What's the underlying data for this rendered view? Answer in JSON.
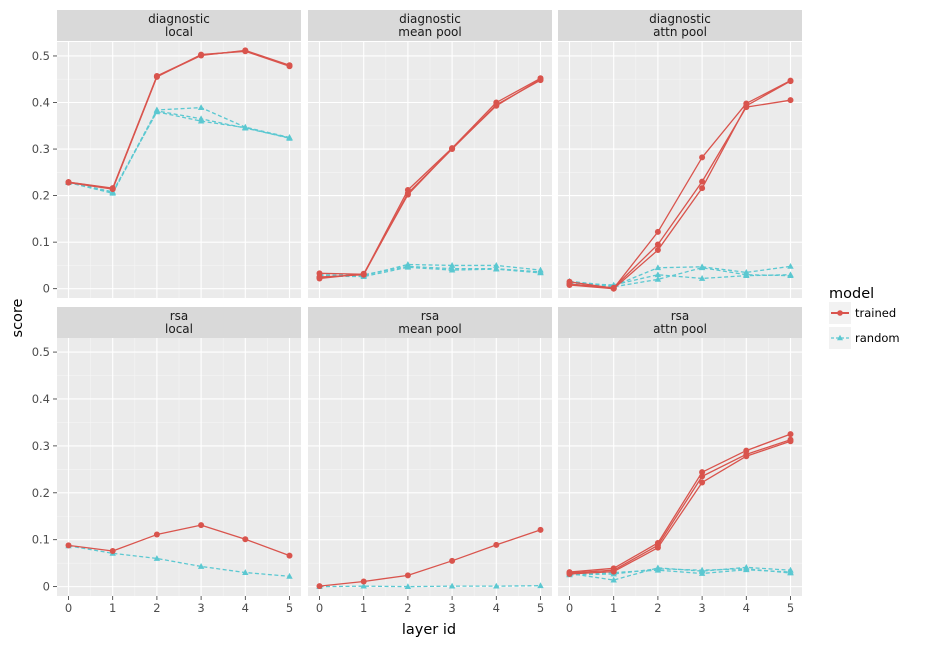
{
  "chart_data": {
    "type": "line",
    "xlabel": "layer id",
    "ylabel": "score",
    "x": [
      0,
      1,
      2,
      3,
      4,
      5
    ],
    "xticks": [
      "0",
      "1",
      "2",
      "3",
      "4",
      "5"
    ],
    "ylim": [
      -0.02,
      0.53
    ],
    "yticks": [
      {
        "value": 0,
        "label": "0"
      },
      {
        "value": 0.1,
        "label": "0.1"
      },
      {
        "value": 0.2,
        "label": "0.2"
      },
      {
        "value": 0.3,
        "label": "0.3"
      },
      {
        "value": 0.4,
        "label": "0.4"
      },
      {
        "value": 0.5,
        "label": "0.5"
      }
    ],
    "legend": {
      "title": "model",
      "position": "right",
      "entries": [
        {
          "key": "trained",
          "label": "trained",
          "color": "#d9544d",
          "dash": "solid",
          "marker": "circle"
        },
        {
          "key": "random",
          "label": "random",
          "color": "#5bc8d1",
          "dash": "dashed",
          "marker": "triangle"
        }
      ]
    },
    "panels": [
      {
        "id": "diagnostic-local",
        "strip": [
          "diagnostic",
          "local"
        ],
        "series": [
          {
            "model": "trained",
            "values": [
              0.229,
              0.216,
              0.457,
              0.502,
              0.511,
              0.479
            ]
          },
          {
            "model": "trained",
            "values": [
              0.228,
              0.214,
              0.455,
              0.503,
              0.51,
              0.478
            ]
          },
          {
            "model": "trained",
            "values": [
              0.229,
              0.215,
              0.456,
              0.501,
              0.512,
              0.48
            ]
          },
          {
            "model": "random",
            "values": [
              0.228,
              0.207,
              0.384,
              0.389,
              0.347,
              0.325
            ]
          },
          {
            "model": "random",
            "values": [
              0.228,
              0.205,
              0.382,
              0.365,
              0.345,
              0.324
            ]
          },
          {
            "model": "random",
            "values": [
              0.229,
              0.208,
              0.38,
              0.36,
              0.346,
              0.323
            ]
          }
        ]
      },
      {
        "id": "diagnostic-mean-pool",
        "strip": [
          "diagnostic",
          "mean pool"
        ],
        "series": [
          {
            "model": "trained",
            "values": [
              0.033,
              0.031,
              0.212,
              0.302,
              0.4,
              0.452
            ]
          },
          {
            "model": "trained",
            "values": [
              0.025,
              0.03,
              0.205,
              0.3,
              0.395,
              0.448
            ]
          },
          {
            "model": "trained",
            "values": [
              0.022,
              0.032,
              0.202,
              0.301,
              0.393,
              0.45
            ]
          },
          {
            "model": "random",
            "values": [
              0.03,
              0.028,
              0.052,
              0.05,
              0.05,
              0.04
            ]
          },
          {
            "model": "random",
            "values": [
              0.028,
              0.03,
              0.048,
              0.043,
              0.043,
              0.036
            ]
          },
          {
            "model": "random",
            "values": [
              0.027,
              0.026,
              0.046,
              0.04,
              0.042,
              0.034
            ]
          }
        ]
      },
      {
        "id": "diagnostic-attn-pool",
        "strip": [
          "diagnostic",
          "attn pool"
        ],
        "series": [
          {
            "model": "trained",
            "values": [
              0.015,
              0.001,
              0.122,
              0.282,
              0.398,
              0.447
            ]
          },
          {
            "model": "trained",
            "values": [
              0.01,
              0.002,
              0.095,
              0.23,
              0.39,
              0.405
            ]
          },
          {
            "model": "trained",
            "values": [
              0.008,
              0.0,
              0.083,
              0.216,
              0.393,
              0.446
            ]
          },
          {
            "model": "random",
            "values": [
              0.016,
              0.006,
              0.045,
              0.047,
              0.035,
              0.048
            ]
          },
          {
            "model": "random",
            "values": [
              0.012,
              0.008,
              0.03,
              0.022,
              0.028,
              0.03
            ]
          },
          {
            "model": "random",
            "values": [
              0.014,
              0.004,
              0.02,
              0.045,
              0.03,
              0.028
            ]
          }
        ]
      },
      {
        "id": "rsa-local",
        "strip": [
          "rsa",
          "local"
        ],
        "series": [
          {
            "model": "trained",
            "values": [
              0.088,
              0.076,
              0.111,
              0.131,
              0.101,
              0.066
            ]
          },
          {
            "model": "random",
            "values": [
              0.087,
              0.071,
              0.06,
              0.043,
              0.03,
              0.022
            ]
          }
        ]
      },
      {
        "id": "rsa-mean-pool",
        "strip": [
          "rsa",
          "mean pool"
        ],
        "series": [
          {
            "model": "trained",
            "values": [
              0.001,
              0.011,
              0.024,
              0.055,
              0.089,
              0.121
            ]
          },
          {
            "model": "random",
            "values": [
              0.0,
              0.001,
              0.0,
              0.001,
              0.001,
              0.002
            ]
          }
        ]
      },
      {
        "id": "rsa-attn-pool",
        "strip": [
          "rsa",
          "attn pool"
        ],
        "series": [
          {
            "model": "trained",
            "values": [
              0.031,
              0.039,
              0.093,
              0.244,
              0.29,
              0.325
            ]
          },
          {
            "model": "trained",
            "values": [
              0.029,
              0.035,
              0.088,
              0.235,
              0.282,
              0.313
            ]
          },
          {
            "model": "trained",
            "values": [
              0.027,
              0.032,
              0.083,
              0.222,
              0.278,
              0.31
            ]
          },
          {
            "model": "random",
            "values": [
              0.028,
              0.014,
              0.04,
              0.033,
              0.041,
              0.035
            ]
          },
          {
            "model": "random",
            "values": [
              0.026,
              0.03,
              0.035,
              0.028,
              0.036,
              0.031
            ]
          },
          {
            "model": "random",
            "values": [
              0.025,
              0.027,
              0.038,
              0.035,
              0.038,
              0.029
            ]
          }
        ]
      }
    ]
  }
}
